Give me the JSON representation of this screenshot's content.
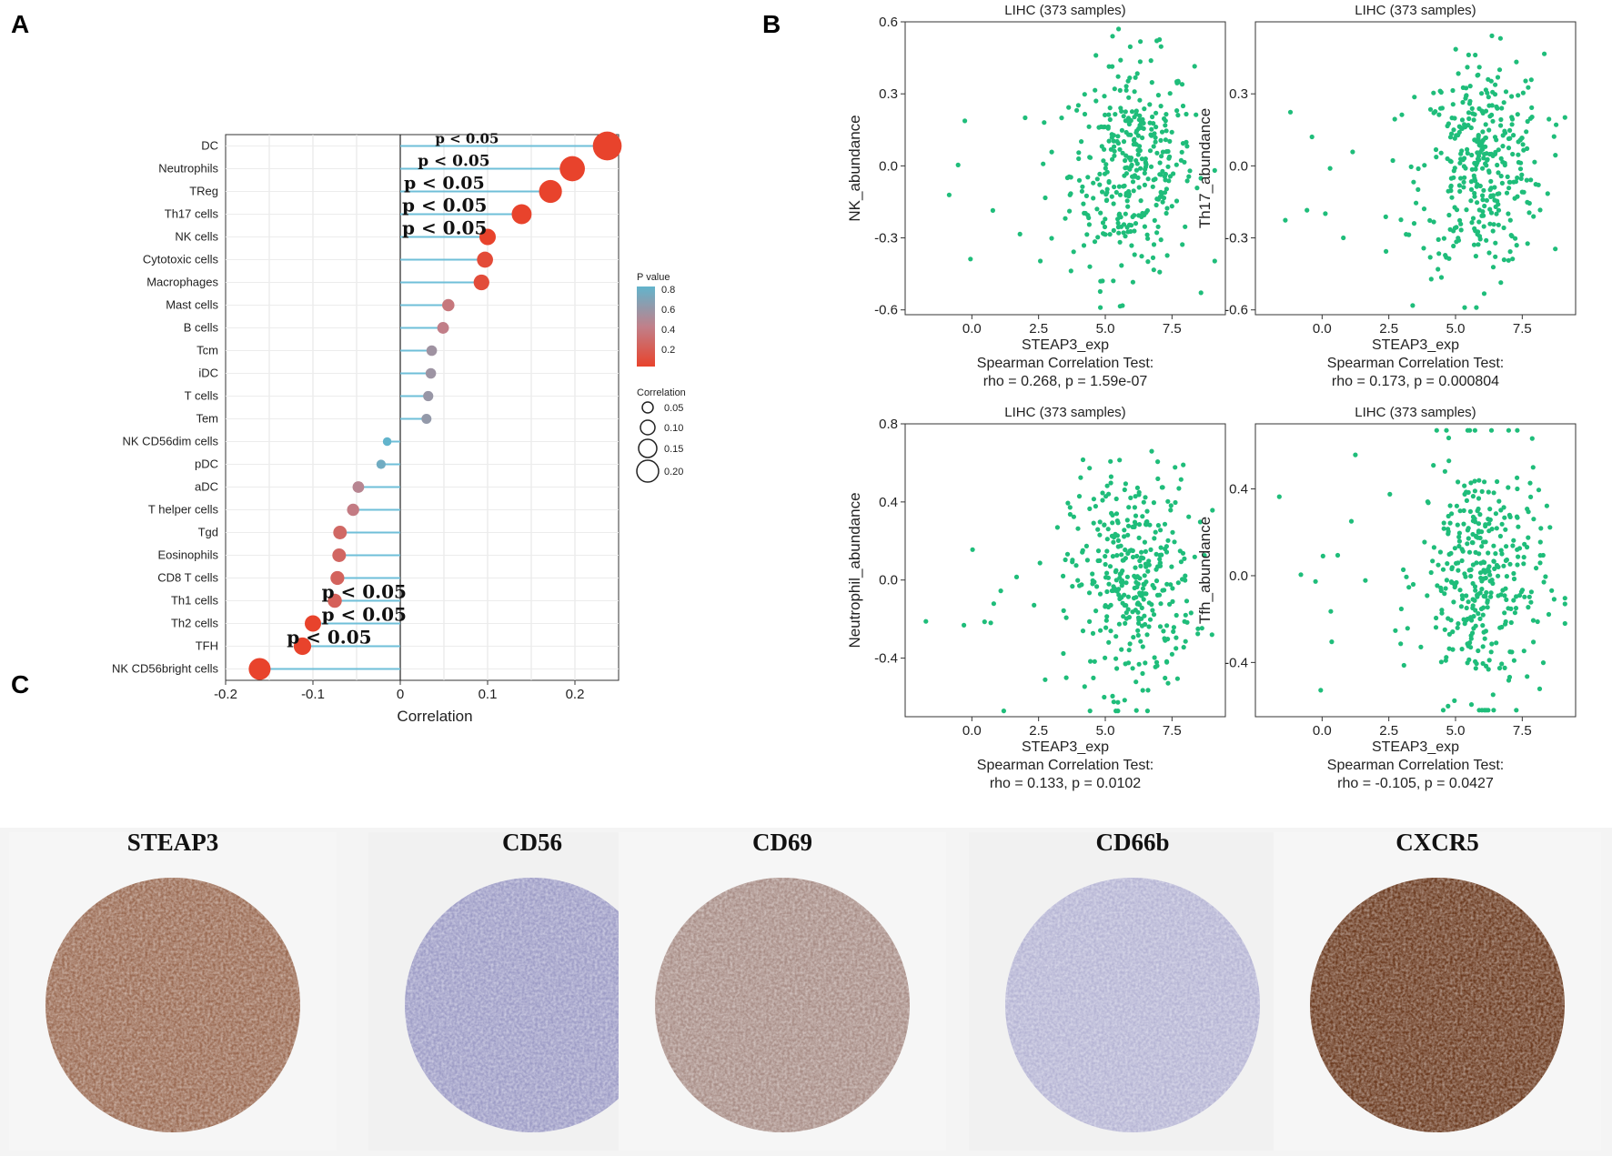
{
  "panels": {
    "a": "A",
    "b": "B",
    "c": "C"
  },
  "panel_a": {
    "pvalue_label": "p < 0.05",
    "legend": {
      "pvalue_title": "P value",
      "pvalue_ticks": [
        "0.8",
        "0.6",
        "0.4",
        "0.2"
      ],
      "correlation_title": "Correlation",
      "correlation_ticks": [
        "0.05",
        "0.10",
        "0.15",
        "0.20"
      ],
      "colors": {
        "low_p": "#e8432c",
        "mid_p": "#c0808a",
        "high_p": "#62b4cc"
      }
    }
  },
  "panel_b": {
    "point_color": "#1fbd7a",
    "plots": [
      {
        "title": "LIHC (373 samples)",
        "ylabel": "NK_abundance",
        "xlabel": "STEAP3_exp",
        "test": "Spearman Correlation Test:",
        "stat": "rho = 0.268, p = 1.59e-07"
      },
      {
        "title": "LIHC (373 samples)",
        "ylabel": "Th17_abundance",
        "xlabel": "STEAP3_exp",
        "test": "Spearman Correlation Test:",
        "stat": "rho = 0.173, p = 0.000804"
      },
      {
        "title": "LIHC (373 samples)",
        "ylabel": "Neutrophil_abundance",
        "xlabel": "STEAP3_exp",
        "test": "Spearman Correlation Test:",
        "stat": "rho = 0.133, p = 0.0102"
      },
      {
        "title": "LIHC (373 samples)",
        "ylabel": "Tfh_abundance",
        "xlabel": "STEAP3_exp",
        "test": "Spearman Correlation Test:",
        "stat": "rho = -0.105, p = 0.0427"
      }
    ]
  },
  "panel_c": {
    "stains": [
      {
        "marker": "STEAP3",
        "stain": "moderate",
        "color": "#9a6a52"
      },
      {
        "marker": "CD56",
        "stain": "negative",
        "color": "#9d9cc6"
      },
      {
        "marker": "CD69",
        "stain": "weak",
        "color": "#a88d86"
      },
      {
        "marker": "CD66b",
        "stain": "negative",
        "color": "#b5b4d4"
      },
      {
        "marker": "CXCR5",
        "stain": "strong",
        "color": "#6b3a1f"
      }
    ]
  },
  "chart_data": [
    {
      "type": "lollipop",
      "title": "",
      "xlabel": "Correlation",
      "ylabel": "",
      "xlim": [
        -0.2,
        0.25
      ],
      "xticks": [
        "-0.2",
        "-0.1",
        "0",
        "0.1",
        "0.2"
      ],
      "grid": true,
      "categories": [
        "DC",
        "Neutrophils",
        "TReg",
        "Th17 cells",
        "NK cells",
        "Cytotoxic cells",
        "Macrophages",
        "Mast cells",
        "B cells",
        "Tcm",
        "iDC",
        "T cells",
        "Tem",
        "NK CD56dim cells",
        "pDC",
        "aDC",
        "T helper cells",
        "Tgd",
        "Eosinophils",
        "CD8 T cells",
        "Th1 cells",
        "Th2 cells",
        "TFH",
        "NK CD56bright cells"
      ],
      "correlation": [
        0.237,
        0.197,
        0.172,
        0.139,
        0.1,
        0.097,
        0.093,
        0.055,
        0.049,
        0.036,
        0.035,
        0.032,
        0.03,
        -0.015,
        -0.022,
        -0.048,
        -0.054,
        -0.069,
        -0.07,
        -0.072,
        -0.075,
        -0.1,
        -0.112,
        -0.161
      ],
      "pvalue": [
        0.01,
        0.01,
        0.01,
        0.01,
        0.01,
        0.06,
        0.07,
        0.35,
        0.4,
        0.55,
        0.56,
        0.58,
        0.6,
        0.85,
        0.75,
        0.45,
        0.38,
        0.25,
        0.24,
        0.22,
        0.2,
        0.01,
        0.01,
        0.01
      ],
      "annotated": [
        "DC",
        "Neutrophils",
        "TReg",
        "Th17 cells",
        "NK cells",
        "Th1 cells",
        "Th2 cells",
        "TFH"
      ]
    },
    {
      "type": "scatter",
      "title": "LIHC (373 samples)",
      "xlabel": "STEAP3_exp",
      "ylabel": "NK_abundance",
      "xlim": [
        -2.5,
        9.5
      ],
      "ylim": [
        -0.62,
        0.6
      ],
      "xticks": [
        "0.0",
        "2.5",
        "5.0",
        "7.5"
      ],
      "yticks": [
        "-0.6",
        "-0.3",
        "0.0",
        "0.3",
        "0.6"
      ],
      "n": 373,
      "rho": 0.268,
      "x_center": 6.0,
      "y_center": 0.0,
      "y_spread": 0.22
    },
    {
      "type": "scatter",
      "title": "LIHC (373 samples)",
      "xlabel": "STEAP3_exp",
      "ylabel": "Th17_abundance",
      "xlim": [
        -2.5,
        9.5
      ],
      "ylim": [
        -0.62,
        0.6
      ],
      "xticks": [
        "0.0",
        "2.5",
        "5.0",
        "7.5"
      ],
      "yticks": [
        "-0.6",
        "-0.3",
        "0.0",
        "0.3"
      ],
      "n": 373,
      "rho": 0.173,
      "x_center": 6.0,
      "y_center": 0.0,
      "y_spread": 0.22
    },
    {
      "type": "scatter",
      "title": "LIHC (373 samples)",
      "xlabel": "STEAP3_exp",
      "ylabel": "Neutrophil_abundance",
      "xlim": [
        -2.5,
        9.5
      ],
      "ylim": [
        -0.7,
        0.8
      ],
      "xticks": [
        "0.0",
        "2.5",
        "5.0",
        "7.5"
      ],
      "yticks": [
        "-0.4",
        "0.0",
        "0.4",
        "0.8"
      ],
      "n": 373,
      "rho": 0.133,
      "x_center": 6.0,
      "y_center": 0.0,
      "y_spread": 0.28
    },
    {
      "type": "scatter",
      "title": "LIHC (373 samples)",
      "xlabel": "STEAP3_exp",
      "ylabel": "Tfh_abundance",
      "xlim": [
        -2.5,
        9.5
      ],
      "ylim": [
        -0.65,
        0.7
      ],
      "xticks": [
        "0.0",
        "2.5",
        "5.0",
        "7.5"
      ],
      "yticks": [
        "-0.4",
        "0.0",
        "0.4"
      ],
      "n": 373,
      "rho": -0.105,
      "x_center": 6.0,
      "y_center": 0.0,
      "y_spread": 0.28
    }
  ]
}
